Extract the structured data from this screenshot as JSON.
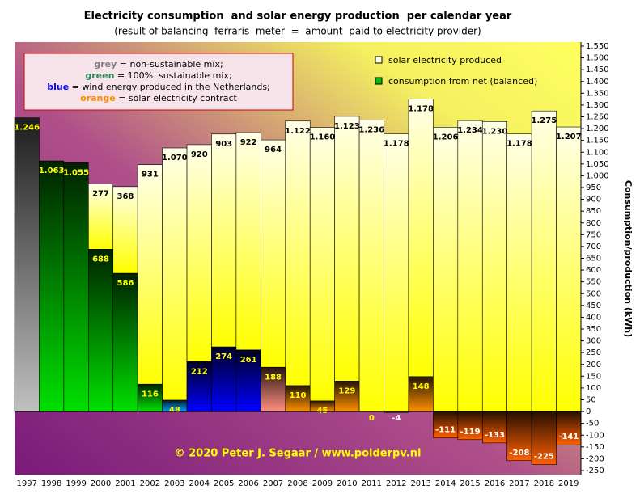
{
  "chart_data": {
    "type": "bar",
    "title": "Electricity consumption  and solar energy production  per calendar year",
    "subtitle": "(result of balancing  ferraris  meter  =  amount  paid to electricity provider)",
    "y_label": "Consumption/production (kWh)",
    "annotation": "© 2020 Peter J. Segaar / www.polderpv.nl",
    "color_key": [
      {
        "key": "grey",
        "text": " = non-sustainable mix;",
        "color": "#808080"
      },
      {
        "key": "green",
        "text": " = 100%  sustainable mix;",
        "color": "#2e8b57"
      },
      {
        "key": "blue",
        "text": " = wind energy produced in the Netherlands;",
        "color": "#0000ff"
      },
      {
        "key": "orange",
        "text": " = solar electricity contract",
        "color": "#ff8c00"
      }
    ],
    "categories": [
      "1997",
      "1998",
      "1999",
      "2000",
      "2001",
      "2002",
      "2003",
      "2004",
      "2005",
      "2006",
      "2007",
      "2008",
      "2009",
      "2010",
      "2011",
      "2012",
      "2013",
      "2014",
      "2015",
      "2016",
      "2017",
      "2018",
      "2019"
    ],
    "series": [
      {
        "name": "consumption from net (balanced)",
        "color": "#00c000",
        "colors": [
          "#c0c0c0",
          "#00e000",
          "#00e000",
          "#00e000",
          "#00e000",
          "#00e000",
          "#00a0ff",
          "#0000ff",
          "#0000ff",
          "#0000ff",
          "#ff9080",
          "#ff9000",
          "#ff9000",
          "#ff9000",
          "#ff9000",
          "#ff9000",
          "#ff9000",
          "#ff6000",
          "#ff6000",
          "#ff6000",
          "#ff6000",
          "#ff6000",
          "#ff6000"
        ],
        "values": [
          1246,
          1063,
          1055,
          688,
          586,
          116,
          48,
          212,
          274,
          261,
          188,
          110,
          45,
          129,
          0,
          -4,
          148,
          -111,
          -119,
          -133,
          -208,
          -225,
          -141
        ],
        "value_labels": [
          "1.246",
          "1.063",
          "1.055",
          "688",
          "586",
          "116",
          "48",
          "212",
          "274",
          "261",
          "188",
          "110",
          "45",
          "129",
          "0",
          "-4",
          "148",
          "-111",
          "-119",
          "-133",
          "-208",
          "-225",
          "-141"
        ]
      },
      {
        "name": "solar electricity produced",
        "color": "#ffff00",
        "values": [
          null,
          null,
          null,
          277,
          368,
          931,
          1070,
          920,
          903,
          922,
          964,
          1122,
          1160,
          1123,
          1236,
          1178,
          1178,
          1206,
          1234,
          1230,
          1178,
          1275,
          1207
        ],
        "value_labels": [
          null,
          null,
          null,
          "277",
          "368",
          "931",
          "1.070",
          "920",
          "903",
          "922",
          "964",
          "1.122",
          "1.160",
          "1.123",
          "1.236",
          "1.178",
          "1.178",
          "1.206",
          "1.234",
          "1.230",
          "1.178",
          "1.275",
          "1.207"
        ]
      }
    ],
    "ylim": [
      -250,
      1550
    ],
    "yticks": [
      -250,
      -200,
      -150,
      -100,
      -50,
      0,
      50,
      100,
      150,
      200,
      250,
      300,
      350,
      400,
      450,
      500,
      550,
      600,
      650,
      700,
      750,
      800,
      850,
      900,
      950,
      {
        "value": 1000,
        "label": "1.000"
      },
      {
        "value": 1050,
        "label": "1.050"
      },
      {
        "value": 1100,
        "label": "1.100"
      },
      {
        "value": 1150,
        "label": "1.150"
      },
      {
        "value": 1200,
        "label": "1.200"
      },
      {
        "value": 1250,
        "label": "1.250"
      },
      {
        "value": 1300,
        "label": "1.300"
      },
      {
        "value": 1350,
        "label": "1.350"
      },
      {
        "value": 1400,
        "label": "1.400"
      },
      {
        "value": 1450,
        "label": "1.450"
      },
      {
        "value": 1500,
        "label": "1.500"
      },
      {
        "value": 1550,
        "label": "1.550"
      }
    ]
  }
}
